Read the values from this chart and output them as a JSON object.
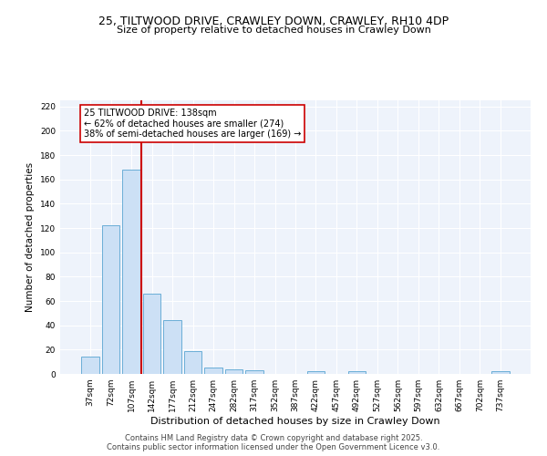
{
  "title_line1": "25, TILTWOOD DRIVE, CRAWLEY DOWN, CRAWLEY, RH10 4DP",
  "title_line2": "Size of property relative to detached houses in Crawley Down",
  "xlabel": "Distribution of detached houses by size in Crawley Down",
  "ylabel": "Number of detached properties",
  "categories": [
    "37sqm",
    "72sqm",
    "107sqm",
    "142sqm",
    "177sqm",
    "212sqm",
    "247sqm",
    "282sqm",
    "317sqm",
    "352sqm",
    "387sqm",
    "422sqm",
    "457sqm",
    "492sqm",
    "527sqm",
    "562sqm",
    "597sqm",
    "632sqm",
    "667sqm",
    "702sqm",
    "737sqm"
  ],
  "values": [
    14,
    122,
    168,
    66,
    44,
    19,
    5,
    4,
    3,
    0,
    0,
    2,
    0,
    2,
    0,
    0,
    0,
    0,
    0,
    0,
    2
  ],
  "bar_color": "#cce0f5",
  "bar_edge_color": "#6aaed6",
  "vline_color": "#cc0000",
  "annotation_text": "25 TILTWOOD DRIVE: 138sqm\n← 62% of detached houses are smaller (274)\n38% of semi-detached houses are larger (169) →",
  "annotation_box_color": "#ffffff",
  "annotation_box_edge": "#cc0000",
  "ylim": [
    0,
    225
  ],
  "yticks": [
    0,
    20,
    40,
    60,
    80,
    100,
    120,
    140,
    160,
    180,
    200,
    220
  ],
  "bg_color": "#eef3fb",
  "footer_line1": "Contains HM Land Registry data © Crown copyright and database right 2025.",
  "footer_line2": "Contains public sector information licensed under the Open Government Licence v3.0.",
  "title_fontsize": 9,
  "subtitle_fontsize": 8,
  "tick_fontsize": 6.5,
  "ylabel_fontsize": 7.5,
  "xlabel_fontsize": 8,
  "annot_fontsize": 7,
  "footer_fontsize": 6,
  "vline_pos": 2.5
}
